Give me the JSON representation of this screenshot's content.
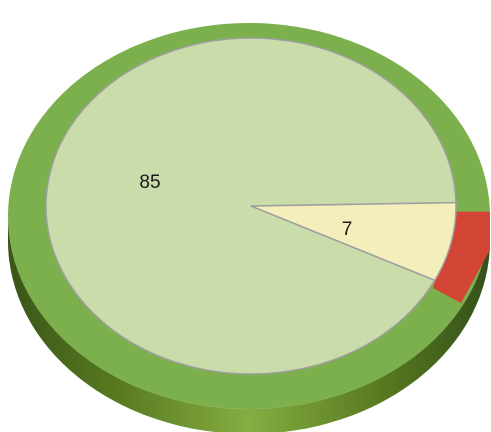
{
  "chart_data": {
    "type": "pie",
    "style": "3d-doughnut",
    "categories": [
      "",
      ""
    ],
    "values": [
      85,
      7
    ],
    "labels": [
      "85",
      "7"
    ],
    "title": "",
    "legend": "none"
  },
  "colors": {
    "slice_1": "#c9dca9",
    "slice_2": "#f4eebb",
    "outer_ring": "#7bb04c",
    "outer_ring_accent": "#d24535",
    "side_dark": "#3e5a1a",
    "side_light": "#7aa33a",
    "slice_border": "#9e9e9e"
  }
}
